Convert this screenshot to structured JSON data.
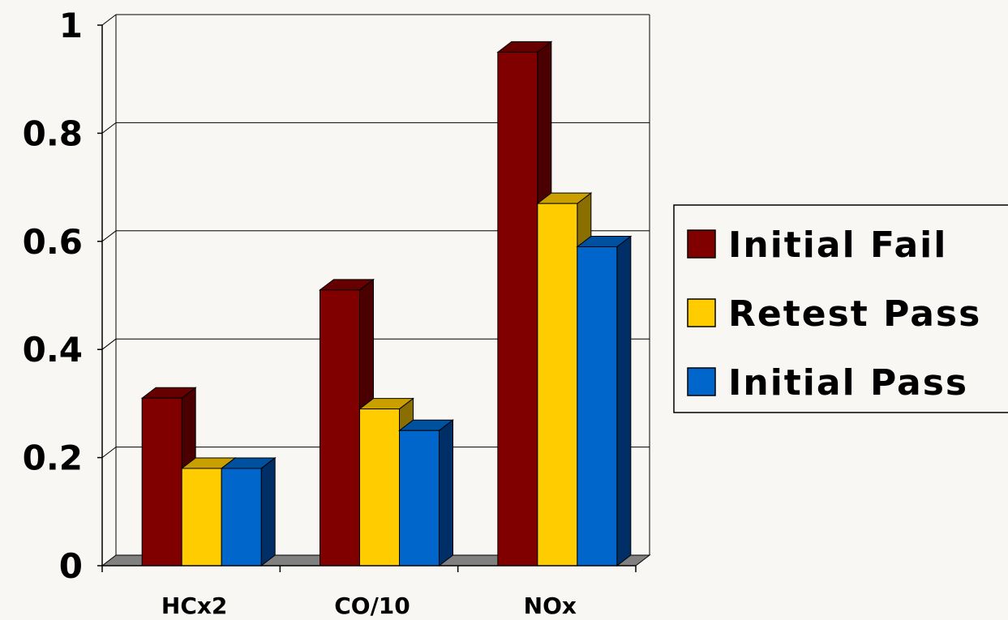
{
  "chart_data": {
    "type": "bar",
    "categories": [
      "HCx2",
      "CO/10",
      "NOx"
    ],
    "series": [
      {
        "name": "Initial Fail",
        "values": [
          0.31,
          0.51,
          0.95
        ],
        "color": "#800000",
        "side_color": "#4A0000",
        "top_color": "#660000"
      },
      {
        "name": "Retest Pass",
        "values": [
          0.18,
          0.29,
          0.67
        ],
        "color": "#FFCC00",
        "side_color": "#8A6E00",
        "top_color": "#C9A000"
      },
      {
        "name": "Initial Pass",
        "values": [
          0.18,
          0.25,
          0.59
        ],
        "color": "#0066CC",
        "side_color": "#002E66",
        "top_color": "#0050A0"
      }
    ],
    "y_ticks": [
      "0",
      "0.2",
      "0.4",
      "0.6",
      "0.8",
      "1"
    ],
    "ylim": [
      0,
      1
    ],
    "grid": true,
    "three_d": true,
    "legend_position": "right",
    "background_color": "#F8F7F3",
    "floor_color": "#808080"
  }
}
